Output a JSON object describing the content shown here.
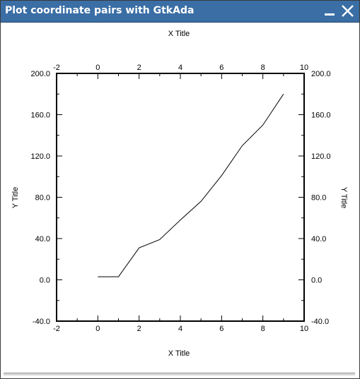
{
  "window": {
    "title": "Plot coordinate pairs with GtkAda",
    "minimize_icon": "minimize-icon",
    "close_icon": "close-icon",
    "title_bar_color": "#3a6ea5"
  },
  "chart_data": {
    "type": "line",
    "xlabel_top": "X Title",
    "xlabel_bottom": "X Title",
    "ylabel_left": "Y Title",
    "ylabel_right": "Y Title",
    "xlim": [
      -2,
      10
    ],
    "ylim": [
      -40,
      200
    ],
    "x_ticks": [
      "-2",
      "0",
      "2",
      "4",
      "6",
      "8",
      "10"
    ],
    "y_ticks": [
      "-40.0",
      "0.0",
      "40.0",
      "80.0",
      "120.0",
      "160.0",
      "200.0"
    ],
    "series": [
      {
        "x": [
          0,
          1,
          2,
          3,
          4,
          5,
          6,
          7,
          8,
          9
        ],
        "y": [
          3,
          3,
          31,
          39,
          58,
          76,
          101,
          130,
          150,
          180
        ]
      }
    ],
    "line_color": "#000000",
    "grid": false
  }
}
